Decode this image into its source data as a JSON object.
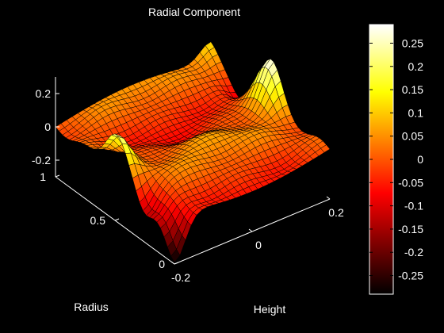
{
  "chart_data": {
    "type": "surface",
    "title": "Radial Component",
    "xlabel": "Height",
    "ylabel": "Radius",
    "zlabel": "",
    "colormap": "hot",
    "x": {
      "range": [
        -0.2,
        0.2
      ],
      "ticks": [
        -0.2,
        0,
        0.2
      ],
      "tick_labels": [
        "-0.2",
        "0",
        "0.2"
      ]
    },
    "y": {
      "range": [
        0,
        1
      ],
      "ticks": [
        0,
        0.5,
        1
      ],
      "tick_labels": [
        "0",
        "0.5",
        "1"
      ]
    },
    "z": {
      "range": [
        -0.3,
        0.3
      ],
      "ticks": [
        -0.2,
        0,
        0.2
      ],
      "tick_labels": [
        "-0.2",
        "0",
        "0.2"
      ]
    },
    "colorbar": {
      "range": [
        -0.29,
        0.29
      ],
      "ticks": [
        -0.25,
        -0.2,
        -0.15,
        -0.1,
        -0.05,
        0,
        0.05,
        0.1,
        0.15,
        0.2,
        0.25
      ],
      "tick_labels": [
        "-0.25",
        "-0.2",
        "-0.15",
        "-0.1",
        "-0.05",
        "0",
        "0.05",
        "0.1",
        "0.15",
        "0.2",
        "0.25"
      ]
    },
    "features": [
      {
        "x": -0.2,
        "y": 0.5,
        "z": 0.22,
        "shape": "peak"
      },
      {
        "x": 0.2,
        "y": 0.5,
        "z": 0.28,
        "shape": "peak"
      },
      {
        "x": -0.2,
        "y": 0.0,
        "z": -0.29,
        "shape": "trough"
      },
      {
        "x": 0.2,
        "y": 1.0,
        "z": 0.12,
        "shape": "peak"
      }
    ]
  }
}
